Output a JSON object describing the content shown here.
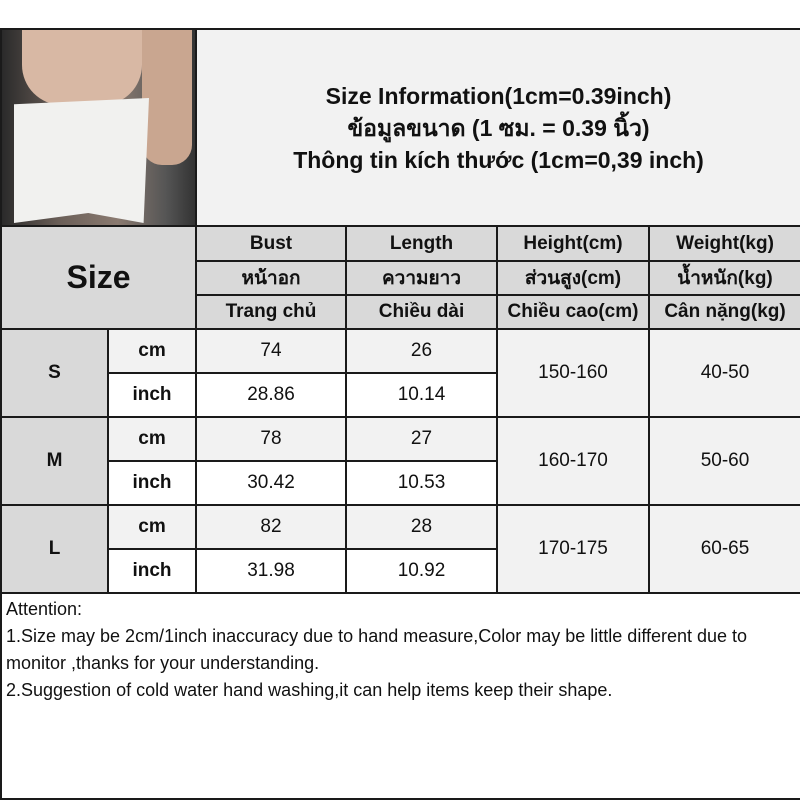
{
  "title": {
    "line1": "Size Information(1cm=0.39inch)",
    "line2": "ข้อมูลขนาด (1 ซม. = 0.39 นิ้ว)",
    "line3": "Thông tin kích thước (1cm=0,39 inch)"
  },
  "size_label": "Size",
  "columns": [
    {
      "en": "Bust",
      "th": "หน้าอก",
      "vi": "Trang chủ"
    },
    {
      "en": "Length",
      "th": "ความยาว",
      "vi": "Chiều dài"
    },
    {
      "en": "Height(cm)",
      "th": "ส่วนสูง(cm)",
      "vi": "Chiều cao(cm)"
    },
    {
      "en": "Weight(kg)",
      "th": "น้ำหนัก(kg)",
      "vi": "Cân nặng(kg)"
    }
  ],
  "rows": [
    {
      "size": "S",
      "cm_label": "cm",
      "inch_label": "inch",
      "bust_cm": "74",
      "length_cm": "26",
      "bust_inch": "28.86",
      "length_inch": "10.14",
      "height": "150-160",
      "weight": "40-50"
    },
    {
      "size": "M",
      "cm_label": "cm",
      "inch_label": "inch",
      "bust_cm": "78",
      "length_cm": "27",
      "bust_inch": "30.42",
      "length_inch": "10.53",
      "height": "160-170",
      "weight": "50-60"
    },
    {
      "size": "L",
      "cm_label": "cm",
      "inch_label": "inch",
      "bust_cm": "82",
      "length_cm": "28",
      "bust_inch": "31.98",
      "length_inch": "10.92",
      "height": "170-175",
      "weight": "60-65"
    }
  ],
  "attention": {
    "heading": "Attention:",
    "note1": "1.Size may be 2cm/1inch inaccuracy due to hand measure,Color may be little different due to monitor ,thanks for your understanding.",
    "note2": "2.Suggestion of cold water hand washing,it can help items keep their shape."
  }
}
